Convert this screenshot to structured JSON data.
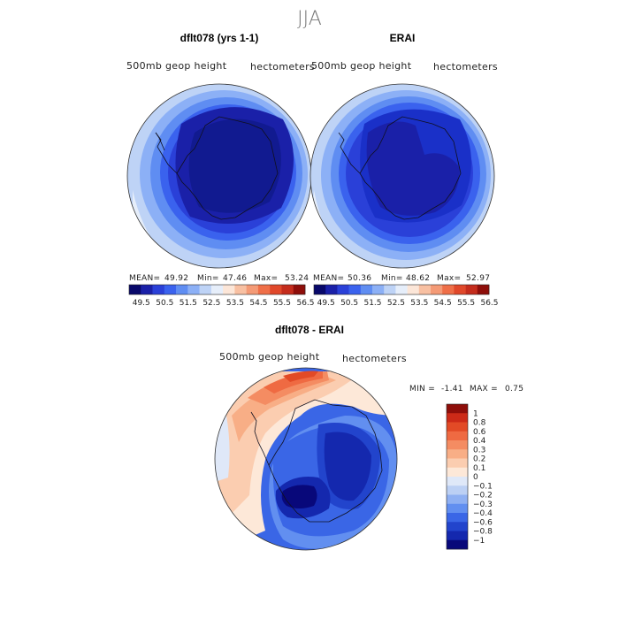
{
  "figure_title": "JJA",
  "chart_data": [
    {
      "type": "heatmap",
      "projection": "south-polar-stereographic",
      "title": "dflt078 (yrs 1-1)",
      "variable": "500mb geop height",
      "units": "hectometers",
      "stats": {
        "mean_label": "MEAN=",
        "mean": "49.92",
        "min_label": "Min=",
        "min": "47.46",
        "max_label": "Max=",
        "max": "53.24"
      },
      "colorbar": {
        "levels": [
          "49.5",
          "50.5",
          "51.5",
          "52.5",
          "53.5",
          "54.5",
          "55.5",
          "56.5"
        ],
        "colors": [
          "#08086a",
          "#1a20a8",
          "#2a40d8",
          "#3a62ee",
          "#5f8df2",
          "#8cb0f6",
          "#bed3f6",
          "#e6eefa",
          "#fce6d8",
          "#f8c0a2",
          "#f49a76",
          "#ef6f48",
          "#e0482a",
          "#c42c1c",
          "#8e0e0a"
        ]
      }
    },
    {
      "type": "heatmap",
      "projection": "south-polar-stereographic",
      "title": "ERAI",
      "variable": "500mb geop height",
      "units": "hectometers",
      "stats": {
        "mean_label": "MEAN=",
        "mean": "50.36",
        "min_label": "Min=",
        "min": "48.62",
        "max_label": "Max=",
        "max": "52.97"
      },
      "colorbar": {
        "levels": [
          "49.5",
          "50.5",
          "51.5",
          "52.5",
          "53.5",
          "54.5",
          "55.5",
          "56.5"
        ],
        "colors": [
          "#08086a",
          "#1a20a8",
          "#2a40d8",
          "#3a62ee",
          "#5f8df2",
          "#8cb0f6",
          "#bed3f6",
          "#e6eefa",
          "#fce6d8",
          "#f8c0a2",
          "#f49a76",
          "#ef6f48",
          "#e0482a",
          "#c42c1c",
          "#8e0e0a"
        ]
      }
    },
    {
      "type": "heatmap",
      "projection": "south-polar-stereographic",
      "title": "dflt078 - ERAI",
      "variable": "500mb geop height",
      "units": "hectometers",
      "stats": {
        "min_label": "MIN =",
        "min": "-1.41",
        "max_label": "MAX =",
        "max": "0.75"
      },
      "colorbar": {
        "levels": [
          "1",
          "0.8",
          "0.6",
          "0.4",
          "0.3",
          "0.2",
          "0.1",
          "0",
          "−0.1",
          "−0.2",
          "−0.3",
          "−0.4",
          "−0.6",
          "−0.8",
          "−1"
        ],
        "colors": [
          "#8e0e0a",
          "#cc2a18",
          "#e24a26",
          "#ef6a42",
          "#f48c62",
          "#f8ae86",
          "#fbcdb0",
          "#fde8d8",
          "#dfe8f8",
          "#bcd0f4",
          "#8fb0f2",
          "#628ff0",
          "#3a66e6",
          "#2244cc",
          "#1428ae",
          "#08087a"
        ]
      }
    }
  ]
}
